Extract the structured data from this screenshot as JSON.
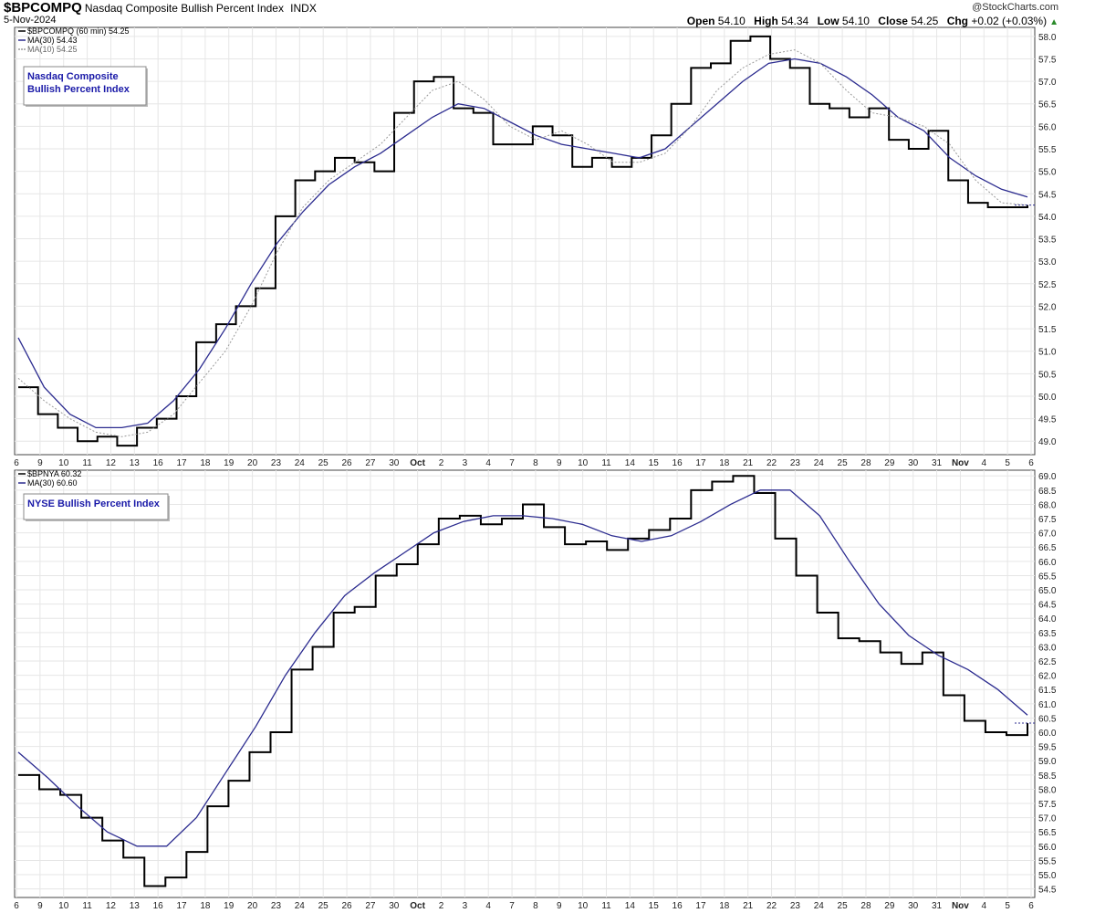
{
  "header": {
    "symbol": "$BPCOMPQ",
    "description": "Nasdaq Composite Bullish Percent Index",
    "exchange": "INDX",
    "date": "5-Nov-2024",
    "brand": "@StockCharts.com",
    "open_label": "Open",
    "open": "54.10",
    "high_label": "High",
    "high": "54.34",
    "low_label": "Low",
    "low": "54.10",
    "close_label": "Close",
    "close": "54.25",
    "chg_label": "Chg",
    "chg": "+0.02 (+0.03%)"
  },
  "colors": {
    "ma30": "#2b2b8f",
    "ma10": "#9a9a9a",
    "price": "#000000",
    "grid": "#e6e6e6",
    "label_text": "#1a1aa8"
  },
  "chart_data": [
    {
      "type": "line",
      "title": "",
      "legend": [
        "$BPCOMPQ (60 min) 54.25",
        "MA(30) 54.43",
        "MA(10) 54.25"
      ],
      "legend_placement": "top-left",
      "annotation": "Nasdaq Composite\nBullish Percent Index",
      "x_ticks": [
        "6",
        "9",
        "10",
        "11",
        "12",
        "13",
        "16",
        "17",
        "18",
        "19",
        "20",
        "23",
        "24",
        "25",
        "26",
        "27",
        "30",
        "Oct",
        "2",
        "3",
        "4",
        "7",
        "8",
        "9",
        "10",
        "11",
        "14",
        "15",
        "16",
        "17",
        "18",
        "21",
        "22",
        "23",
        "24",
        "25",
        "28",
        "29",
        "30",
        "31",
        "Nov",
        "4",
        "5",
        "6"
      ],
      "ylim": [
        48.7,
        58.2
      ],
      "y_ticks": [
        49.0,
        49.5,
        50.0,
        50.5,
        51.0,
        51.5,
        52.0,
        52.5,
        53.0,
        53.5,
        54.0,
        54.5,
        55.0,
        55.5,
        56.0,
        56.5,
        57.0,
        57.5,
        58.0
      ],
      "last_value": 54.25,
      "series": [
        {
          "name": "$BPCOMPQ (60 min)",
          "values": [
            50.2,
            49.6,
            49.3,
            49.0,
            49.1,
            48.9,
            49.3,
            49.5,
            50.0,
            51.2,
            51.6,
            52.0,
            52.4,
            54.0,
            54.8,
            55.0,
            55.3,
            55.2,
            55.0,
            56.3,
            57.0,
            57.1,
            56.4,
            56.3,
            55.6,
            55.6,
            56.0,
            55.8,
            55.1,
            55.3,
            55.1,
            55.3,
            55.8,
            56.5,
            57.3,
            57.4,
            57.9,
            58.0,
            57.5,
            57.3,
            56.5,
            56.4,
            56.2,
            56.4,
            55.7,
            55.5,
            55.9,
            54.8,
            54.3,
            54.2,
            54.2,
            54.25
          ]
        },
        {
          "name": "MA(30)",
          "values": [
            51.3,
            50.2,
            49.6,
            49.3,
            49.3,
            49.4,
            49.9,
            50.6,
            51.5,
            52.5,
            53.4,
            54.1,
            54.7,
            55.1,
            55.4,
            55.8,
            56.2,
            56.5,
            56.4,
            56.1,
            55.8,
            55.6,
            55.5,
            55.4,
            55.3,
            55.5,
            56.0,
            56.5,
            57.0,
            57.4,
            57.5,
            57.4,
            57.1,
            56.7,
            56.2,
            55.9,
            55.3,
            54.9,
            54.6,
            54.43
          ]
        },
        {
          "name": "MA(10)",
          "values": [
            50.4,
            49.9,
            49.5,
            49.2,
            49.1,
            49.2,
            49.6,
            50.3,
            51.0,
            52.0,
            53.2,
            54.2,
            54.8,
            55.2,
            55.6,
            56.2,
            56.8,
            57.0,
            56.6,
            56.0,
            55.7,
            55.9,
            55.6,
            55.2,
            55.2,
            55.4,
            56.0,
            56.8,
            57.3,
            57.6,
            57.7,
            57.4,
            56.8,
            56.3,
            56.2,
            56.0,
            55.6,
            54.8,
            54.3,
            54.25
          ]
        }
      ]
    },
    {
      "type": "line",
      "title": "",
      "legend": [
        "$BPNYA 60.32",
        "MA(30) 60.60"
      ],
      "legend_placement": "top-left",
      "annotation": "NYSE Bullish Percent Index",
      "x_ticks": [
        "6",
        "9",
        "10",
        "11",
        "12",
        "13",
        "16",
        "17",
        "18",
        "19",
        "20",
        "23",
        "24",
        "25",
        "26",
        "27",
        "30",
        "Oct",
        "2",
        "3",
        "4",
        "7",
        "8",
        "9",
        "10",
        "11",
        "14",
        "15",
        "16",
        "17",
        "18",
        "21",
        "22",
        "23",
        "24",
        "25",
        "28",
        "29",
        "30",
        "31",
        "Nov",
        "4",
        "5",
        "6"
      ],
      "ylim": [
        54.2,
        69.2
      ],
      "y_ticks": [
        54.5,
        55.0,
        55.5,
        56.0,
        56.5,
        57.0,
        57.5,
        58.0,
        58.5,
        59.0,
        59.5,
        60.0,
        60.5,
        61.0,
        61.5,
        62.0,
        62.5,
        63.0,
        63.5,
        64.0,
        64.5,
        65.0,
        65.5,
        66.0,
        66.5,
        67.0,
        67.5,
        68.0,
        68.5,
        69.0
      ],
      "last_value": 60.32,
      "series": [
        {
          "name": "$BPNYA",
          "values": [
            58.5,
            58.0,
            57.8,
            57.0,
            56.2,
            55.6,
            54.6,
            54.9,
            55.8,
            57.4,
            58.3,
            59.3,
            60.0,
            62.2,
            63.0,
            64.2,
            64.4,
            65.5,
            65.9,
            66.6,
            67.5,
            67.6,
            67.3,
            67.5,
            68.0,
            67.2,
            66.6,
            66.7,
            66.4,
            66.8,
            67.1,
            67.5,
            68.5,
            68.8,
            69.0,
            68.4,
            66.8,
            65.5,
            64.2,
            63.3,
            63.2,
            62.8,
            62.4,
            62.8,
            61.3,
            60.4,
            60.0,
            59.9,
            60.32
          ]
        },
        {
          "name": "MA(30)",
          "values": [
            59.3,
            58.4,
            57.4,
            56.5,
            56.0,
            56.0,
            57.0,
            58.6,
            60.2,
            62.0,
            63.5,
            64.8,
            65.6,
            66.3,
            67.0,
            67.4,
            67.6,
            67.6,
            67.5,
            67.3,
            66.9,
            66.7,
            66.9,
            67.4,
            68.0,
            68.5,
            68.5,
            67.6,
            66.0,
            64.5,
            63.4,
            62.7,
            62.2,
            61.5,
            60.6
          ]
        }
      ]
    }
  ]
}
